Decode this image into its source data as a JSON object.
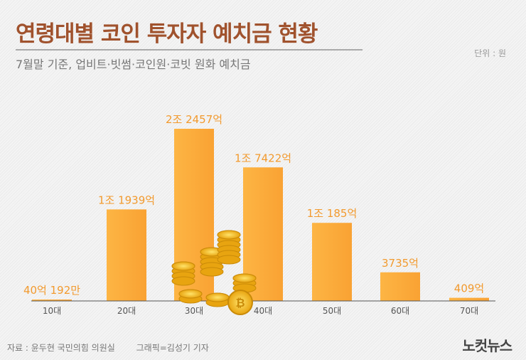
{
  "title": "연령대별 코인 투자자 예치금 현황",
  "subtitle": "7월말 기준, 업비트·빗썸·코인원·코빗 원화 예치금",
  "unit": "단위 : 원",
  "source": "자료 : 윤두현 국민의힘 의원실",
  "credit": "그래픽=김성기 기자",
  "logo": "노컷뉴스",
  "chart_data": {
    "type": "bar",
    "categories": [
      "10대",
      "20대",
      "30대",
      "40대",
      "50대",
      "60대",
      "70대"
    ],
    "values": [
      40.0192,
      11939,
      22457,
      17422,
      10185,
      3735,
      409
    ],
    "value_unit": "억원",
    "data_labels": [
      "40억 192만",
      "1조 1939억",
      "2조 2457억",
      "1조 7422억",
      "1조 185억",
      "3735억",
      "409억"
    ],
    "grid": false,
    "colors": {
      "bar": "#fbaa3a",
      "label": "#f29a2e",
      "title": "#a0522d"
    }
  }
}
